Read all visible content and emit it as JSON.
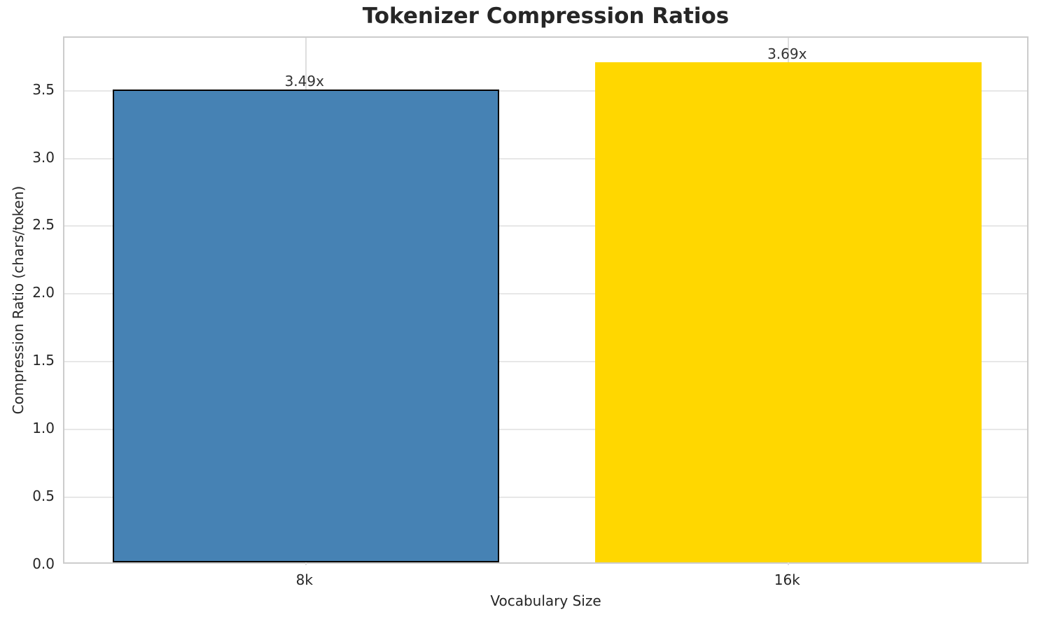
{
  "chart_data": {
    "type": "bar",
    "title": "Tokenizer Compression Ratios",
    "xlabel": "Vocabulary Size",
    "ylabel": "Compression Ratio (chars/token)",
    "categories": [
      "8k",
      "16k"
    ],
    "values": [
      3.49,
      3.69
    ],
    "bar_labels": [
      "3.49x",
      "3.69x"
    ],
    "bar_colors": [
      "#4682B4",
      "#FFD700"
    ],
    "bar_edge_colors": [
      "#000000",
      "none"
    ],
    "bar_width_fraction": 0.8,
    "ylim": [
      0,
      3.89
    ],
    "yticks": [
      0.0,
      0.5,
      1.0,
      1.5,
      2.0,
      2.5,
      3.0,
      3.5
    ],
    "ytick_labels": [
      "0.0",
      "0.5",
      "1.0",
      "1.5",
      "2.0",
      "2.5",
      "3.0",
      "3.5"
    ],
    "grid": true,
    "legend_position": "none"
  },
  "colors": {
    "text": "#262626",
    "grid_horizontal": "#e7e7e7",
    "grid_vertical": "#dedede",
    "spine": "#cccccc",
    "background": "#ffffff"
  }
}
